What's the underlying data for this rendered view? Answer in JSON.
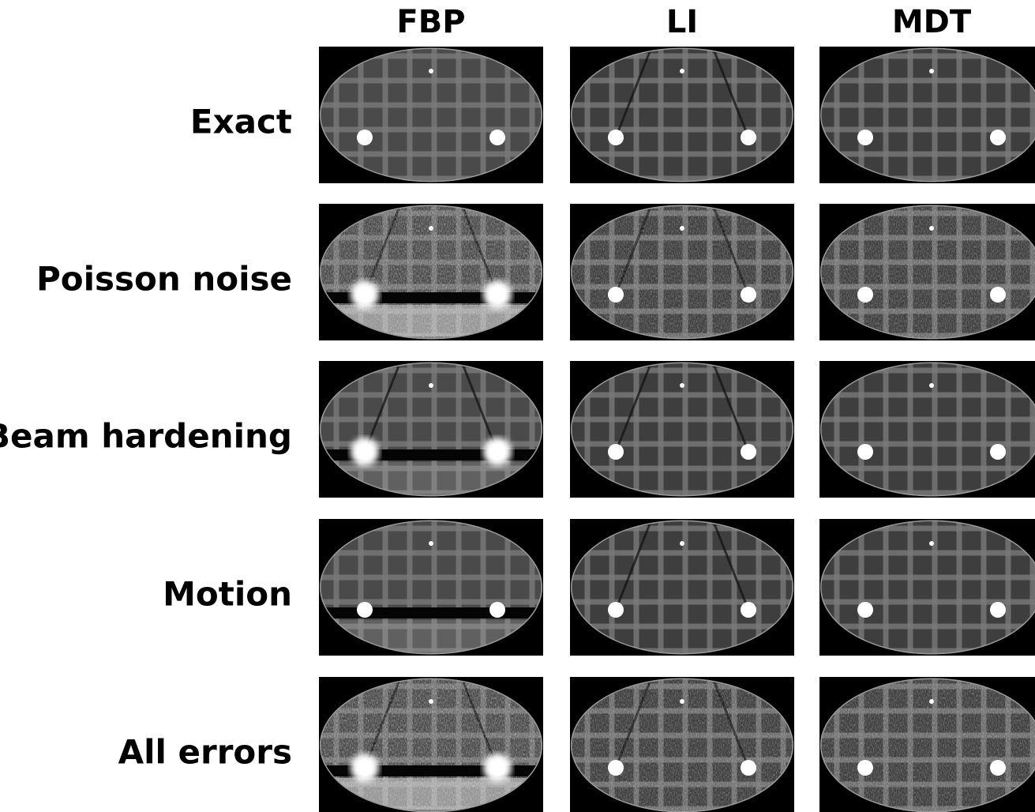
{
  "columns": [
    "FBP",
    "LI",
    "MDT"
  ],
  "rows": [
    "Exact",
    "Poisson noise",
    "Beam hardening",
    "Motion",
    "All errors"
  ]
}
